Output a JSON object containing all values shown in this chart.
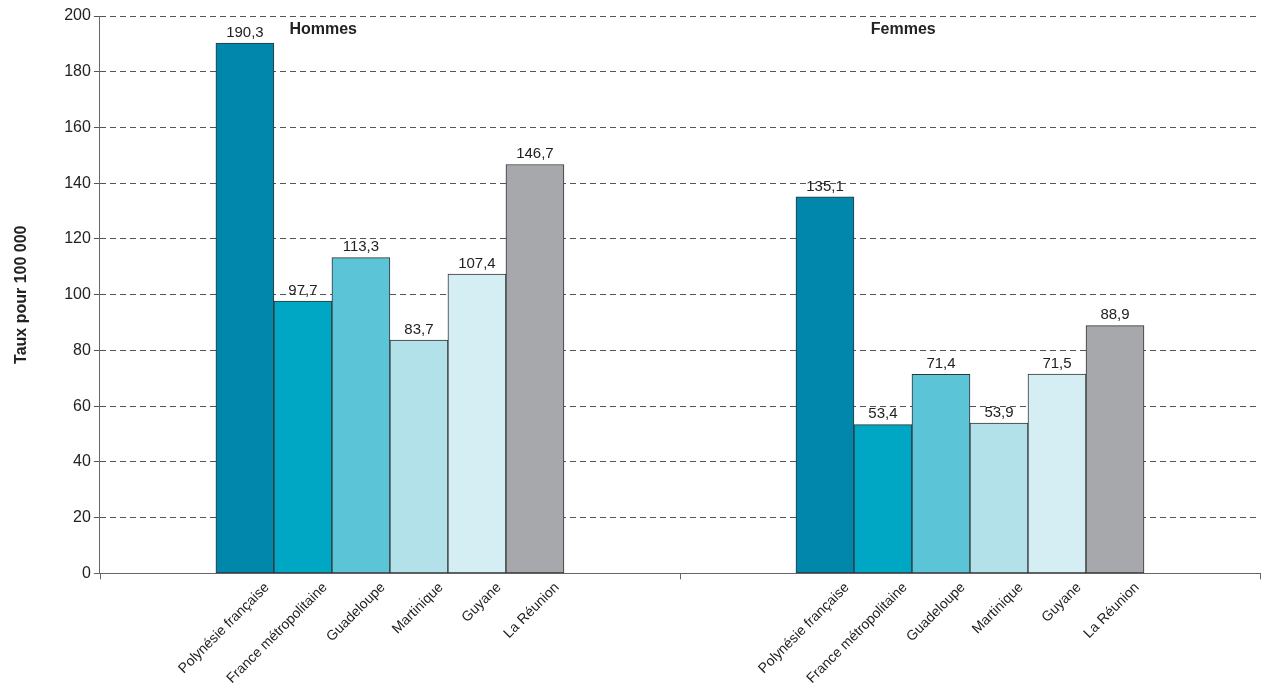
{
  "chart_data": {
    "type": "bar",
    "ylabel": "Taux pour 100 000",
    "categories": [
      "Polynésie française",
      "France métropolitaine",
      "Guadeloupe",
      "Martinique",
      "Guyane",
      "La Réunion",
      "Polynésie française",
      "France métropolitaine",
      "Guadeloupe",
      "Martinique",
      "Guyane",
      "La Réunion"
    ],
    "values": [
      190.3,
      97.7,
      113.3,
      83.7,
      107.4,
      146.7,
      135.1,
      53.4,
      71.4,
      53.9,
      71.5,
      88.9
    ],
    "value_labels": [
      "190,3",
      "97,7",
      "113,3",
      "83,7",
      "107,4",
      "146,7",
      "135,1",
      "53,4",
      "71,4",
      "53,9",
      "71,5",
      "88,9"
    ],
    "colors": [
      "#0087ab",
      "#00a7c4",
      "#5cc4d7",
      "#b3e1e9",
      "#d5eef3",
      "#a6a8ab",
      "#0087ab",
      "#00a7c4",
      "#5cc4d7",
      "#b3e1e9",
      "#d5eef3",
      "#a6a8ab"
    ],
    "annotations": [
      "Hommes",
      "Femmes"
    ],
    "ylim": [
      0,
      200
    ],
    "yticks": [
      0,
      20,
      40,
      60,
      80,
      100,
      120,
      140,
      160,
      180,
      200
    ],
    "grid": "y",
    "line_style": "dashed",
    "legend": false
  }
}
